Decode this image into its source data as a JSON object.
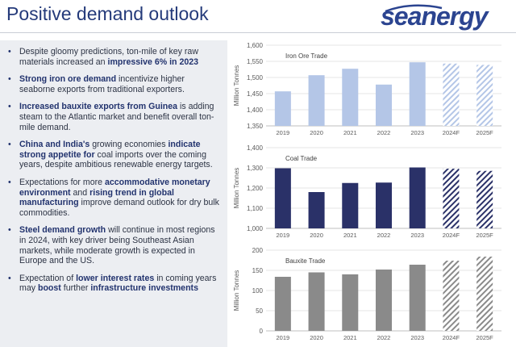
{
  "slide": {
    "title": "Positive demand outlook",
    "logo_text": "seanergy"
  },
  "bullets": [
    {
      "segments": [
        {
          "text": "Despite gloomy predictions, ton-mile of key raw materials increased an ",
          "bold": false
        },
        {
          "text": "impressive 6% in 2023",
          "bold": true
        }
      ]
    },
    {
      "segments": [
        {
          "text": "Strong iron ore demand",
          "bold": true
        },
        {
          "text": " incentivize higher seaborne exports from traditional exporters.",
          "bold": false
        }
      ]
    },
    {
      "segments": [
        {
          "text": "Increased bauxite exports from Guinea",
          "bold": true
        },
        {
          "text": " is adding steam to the Atlantic market and benefit overall ton-mile demand.",
          "bold": false
        }
      ]
    },
    {
      "segments": [
        {
          "text": "China and India's",
          "bold": true
        },
        {
          "text": " growing economies ",
          "bold": false
        },
        {
          "text": "indicate strong appetite for",
          "bold": true
        },
        {
          "text": " coal imports over the coming years, despite ambitious renewable energy targets.",
          "bold": false
        }
      ]
    },
    {
      "segments": [
        {
          "text": "Expectations for more ",
          "bold": false
        },
        {
          "text": "accommodative monetary environment",
          "bold": true
        },
        {
          "text": " and ",
          "bold": false
        },
        {
          "text": "rising trend in global manufacturing",
          "bold": true
        },
        {
          "text": " improve demand outlook for dry bulk commodities.",
          "bold": false
        }
      ]
    },
    {
      "segments": [
        {
          "text": "Steel demand growth",
          "bold": true
        },
        {
          "text": " will continue in most regions in 2024, with key driver being Southeast Asian markets, while moderate growth is expected in Europe and the US.",
          "bold": false
        }
      ]
    },
    {
      "segments": [
        {
          "text": "Expectation of ",
          "bold": false
        },
        {
          "text": "lower interest rates",
          "bold": true
        },
        {
          "text": " in coming years may ",
          "bold": false
        },
        {
          "text": "boost",
          "bold": true
        },
        {
          "text": " further ",
          "bold": false
        },
        {
          "text": "infrastructure investments",
          "bold": true
        }
      ]
    }
  ],
  "chart_data": [
    {
      "type": "bar",
      "title": "Iron Ore Trade",
      "ylabel": "Million Tonnes",
      "xlabel": "",
      "categories": [
        "2019",
        "2020",
        "2021",
        "2022",
        "2023",
        "2024F",
        "2025F"
      ],
      "values": [
        1457,
        1507,
        1527,
        1478,
        1547,
        1543,
        1539
      ],
      "forecast": [
        false,
        false,
        false,
        false,
        false,
        true,
        true
      ],
      "ylim": [
        1350,
        1600
      ],
      "yticks": [
        "1,350",
        "1,400",
        "1,450",
        "1,500",
        "1,550",
        "1,600"
      ],
      "ytick_values": [
        1350,
        1400,
        1450,
        1500,
        1550,
        1600
      ],
      "color": "#b4c6e7",
      "grid": true
    },
    {
      "type": "bar",
      "title": "Coal Trade",
      "ylabel": "Million Tonnes",
      "xlabel": "",
      "categories": [
        "2019",
        "2020",
        "2021",
        "2022",
        "2023",
        "2024F",
        "2025F"
      ],
      "values": [
        1298,
        1180,
        1225,
        1227,
        1302,
        1296,
        1285
      ],
      "forecast": [
        false,
        false,
        false,
        false,
        false,
        true,
        true
      ],
      "ylim": [
        1000,
        1400
      ],
      "yticks": [
        "1,000",
        "1,100",
        "1,200",
        "1,300",
        "1,400"
      ],
      "ytick_values": [
        1000,
        1100,
        1200,
        1300,
        1400
      ],
      "color": "#2a3168",
      "grid": true
    },
    {
      "type": "bar",
      "title": "Bauxite Trade",
      "ylabel": "Million Tonnes",
      "xlabel": "",
      "categories": [
        "2019",
        "2020",
        "2021",
        "2022",
        "2023",
        "2024F",
        "2025F"
      ],
      "values": [
        134,
        145,
        140,
        152,
        164,
        174,
        184
      ],
      "forecast": [
        false,
        false,
        false,
        false,
        false,
        true,
        true
      ],
      "ylim": [
        0,
        200
      ],
      "yticks": [
        "0",
        "50",
        "100",
        "150",
        "200"
      ],
      "ytick_values": [
        0,
        50,
        100,
        150,
        200
      ],
      "color": "#8a8a8a",
      "grid": true
    }
  ]
}
